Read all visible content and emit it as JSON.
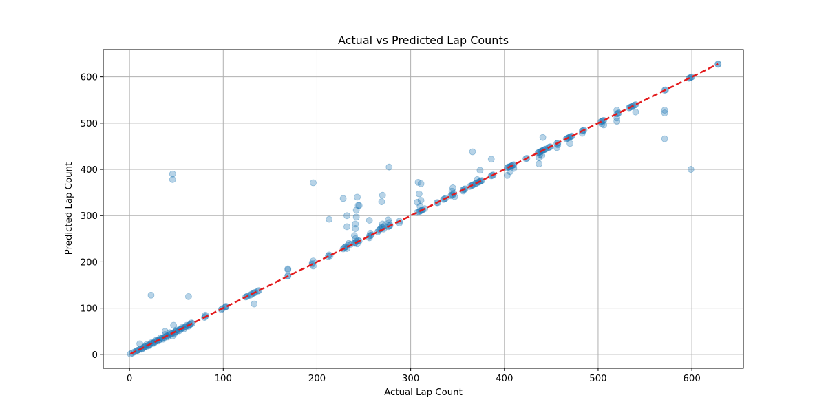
{
  "chart_data": {
    "type": "scatter",
    "title": "Actual vs Predicted Lap Counts",
    "xlabel": "Actual Lap Count",
    "ylabel": "Predicted Lap Count",
    "xlim": [
      -28,
      655
    ],
    "ylim": [
      -30,
      659
    ],
    "xticks": [
      0,
      100,
      200,
      300,
      400,
      500,
      600
    ],
    "yticks": [
      0,
      100,
      200,
      300,
      400,
      500,
      600
    ],
    "grid": true,
    "colors": {
      "points": "#1f77b4",
      "reference_line": "#e31a1c",
      "grid": "#b0b0b0"
    },
    "series": [
      {
        "points": [
          [
            1,
            1
          ],
          [
            3,
            3
          ],
          [
            5,
            5
          ],
          [
            7,
            7
          ],
          [
            9,
            9
          ],
          [
            10,
            10
          ],
          [
            12,
            12
          ],
          [
            14,
            13
          ],
          [
            15,
            15
          ],
          [
            17,
            17
          ],
          [
            19,
            18
          ],
          [
            20,
            20
          ],
          [
            22,
            22
          ],
          [
            24,
            24
          ],
          [
            25,
            25
          ],
          [
            27,
            27
          ],
          [
            29,
            29
          ],
          [
            30,
            31
          ],
          [
            32,
            32
          ],
          [
            34,
            34
          ],
          [
            35,
            35
          ],
          [
            37,
            37
          ],
          [
            39,
            39
          ],
          [
            40,
            40
          ],
          [
            42,
            42
          ],
          [
            44,
            44
          ],
          [
            45,
            45
          ],
          [
            47,
            47
          ],
          [
            49,
            49
          ],
          [
            50,
            50
          ],
          [
            52,
            52
          ],
          [
            54,
            54
          ],
          [
            55,
            55
          ],
          [
            57,
            57
          ],
          [
            59,
            59
          ],
          [
            60,
            60
          ],
          [
            62,
            62
          ],
          [
            64,
            64
          ],
          [
            65,
            65
          ],
          [
            67,
            67
          ],
          [
            8,
            8
          ],
          [
            11,
            23
          ],
          [
            13,
            11
          ],
          [
            16,
            16
          ],
          [
            18,
            21
          ],
          [
            21,
            19
          ],
          [
            23,
            25
          ],
          [
            26,
            24
          ],
          [
            28,
            30
          ],
          [
            31,
            29
          ],
          [
            33,
            36
          ],
          [
            36,
            33
          ],
          [
            38,
            43
          ],
          [
            38,
            50
          ],
          [
            41,
            38
          ],
          [
            43,
            47
          ],
          [
            46,
            40
          ],
          [
            47,
            63
          ],
          [
            48,
            45
          ],
          [
            50,
            53
          ],
          [
            53,
            51
          ],
          [
            56,
            58
          ],
          [
            58,
            55
          ],
          [
            61,
            63
          ],
          [
            63,
            61
          ],
          [
            66,
            68
          ],
          [
            23,
            128
          ],
          [
            63,
            125
          ],
          [
            46,
            390
          ],
          [
            46,
            378
          ],
          [
            80,
            80
          ],
          [
            81,
            82
          ],
          [
            81,
            85
          ],
          [
            98,
            97
          ],
          [
            99,
            99
          ],
          [
            102,
            102
          ],
          [
            103,
            103
          ],
          [
            103,
            104
          ],
          [
            124,
            124
          ],
          [
            125,
            125
          ],
          [
            126,
            126
          ],
          [
            129,
            128
          ],
          [
            130,
            130
          ],
          [
            132,
            132
          ],
          [
            133,
            133
          ],
          [
            134,
            134
          ],
          [
            137,
            137
          ],
          [
            138,
            138
          ],
          [
            133,
            109
          ],
          [
            169,
            169
          ],
          [
            169,
            170
          ],
          [
            169,
            183
          ],
          [
            169,
            185
          ],
          [
            195,
            195
          ],
          [
            195,
            198
          ],
          [
            196,
            191
          ],
          [
            196,
            202
          ],
          [
            196,
            371
          ],
          [
            212,
            212
          ],
          [
            213,
            215
          ],
          [
            214,
            213
          ],
          [
            213,
            292
          ],
          [
            228,
            228
          ],
          [
            229,
            230
          ],
          [
            230,
            232
          ],
          [
            231,
            233
          ],
          [
            232,
            229
          ],
          [
            233,
            236
          ],
          [
            234,
            240
          ],
          [
            236,
            238
          ],
          [
            228,
            337
          ],
          [
            232,
            276
          ],
          [
            232,
            300
          ],
          [
            240,
            240
          ],
          [
            241,
            242
          ],
          [
            242,
            244
          ],
          [
            243,
            239
          ],
          [
            244,
            246
          ],
          [
            245,
            245
          ],
          [
            240,
            257
          ],
          [
            241,
            250
          ],
          [
            241,
            272
          ],
          [
            241,
            282
          ],
          [
            242,
            297
          ],
          [
            242,
            312
          ],
          [
            243,
            340
          ],
          [
            244,
            322
          ],
          [
            245,
            322
          ],
          [
            256,
            256
          ],
          [
            257,
            257
          ],
          [
            258,
            258
          ],
          [
            256,
            252
          ],
          [
            257,
            262
          ],
          [
            256,
            290
          ],
          [
            265,
            265
          ],
          [
            266,
            268
          ],
          [
            267,
            270
          ],
          [
            268,
            272
          ],
          [
            269,
            275
          ],
          [
            270,
            274
          ],
          [
            271,
            271
          ],
          [
            272,
            278
          ],
          [
            269,
            330
          ],
          [
            270,
            344
          ],
          [
            270,
            282
          ],
          [
            276,
            276
          ],
          [
            277,
            278
          ],
          [
            278,
            279
          ],
          [
            277,
            285
          ],
          [
            276,
            291
          ],
          [
            277,
            405
          ],
          [
            288,
            288
          ],
          [
            288,
            284
          ],
          [
            307,
            307
          ],
          [
            309,
            308
          ],
          [
            310,
            310
          ],
          [
            311,
            311
          ],
          [
            312,
            312
          ],
          [
            313,
            313
          ],
          [
            315,
            315
          ],
          [
            307,
            329
          ],
          [
            308,
            372
          ],
          [
            309,
            347
          ],
          [
            311,
            333
          ],
          [
            311,
            369
          ],
          [
            310,
            320
          ],
          [
            328,
            328
          ],
          [
            329,
            328
          ],
          [
            335,
            335
          ],
          [
            336,
            336
          ],
          [
            337,
            337
          ],
          [
            343,
            343
          ],
          [
            344,
            345
          ],
          [
            345,
            345
          ],
          [
            346,
            348
          ],
          [
            347,
            341
          ],
          [
            345,
            360
          ],
          [
            344,
            353
          ],
          [
            356,
            356
          ],
          [
            357,
            357
          ],
          [
            358,
            358
          ],
          [
            356,
            353
          ],
          [
            363,
            363
          ],
          [
            365,
            365
          ],
          [
            366,
            366
          ],
          [
            367,
            367
          ],
          [
            369,
            369
          ],
          [
            370,
            370
          ],
          [
            372,
            372
          ],
          [
            373,
            373
          ],
          [
            374,
            374
          ],
          [
            375,
            375
          ],
          [
            376,
            376
          ],
          [
            366,
            438
          ],
          [
            371,
            378
          ],
          [
            374,
            398
          ],
          [
            386,
            386
          ],
          [
            387,
            387
          ],
          [
            388,
            388
          ],
          [
            386,
            422
          ],
          [
            403,
            403
          ],
          [
            404,
            405
          ],
          [
            405,
            405
          ],
          [
            406,
            406
          ],
          [
            407,
            407
          ],
          [
            408,
            408
          ],
          [
            409,
            409
          ],
          [
            410,
            410
          ],
          [
            403,
            387
          ],
          [
            406,
            395
          ],
          [
            410,
            402
          ],
          [
            423,
            423
          ],
          [
            424,
            424
          ],
          [
            436,
            436
          ],
          [
            437,
            437
          ],
          [
            438,
            438
          ],
          [
            439,
            439
          ],
          [
            440,
            440
          ],
          [
            441,
            441
          ],
          [
            442,
            442
          ],
          [
            443,
            443
          ],
          [
            444,
            444
          ],
          [
            437,
            412
          ],
          [
            437,
            425
          ],
          [
            438,
            432
          ],
          [
            440,
            430
          ],
          [
            441,
            469
          ],
          [
            447,
            447
          ],
          [
            448,
            448
          ],
          [
            449,
            449
          ],
          [
            456,
            456
          ],
          [
            457,
            457
          ],
          [
            456,
            447
          ],
          [
            457,
            453
          ],
          [
            466,
            466
          ],
          [
            467,
            467
          ],
          [
            468,
            468
          ],
          [
            469,
            469
          ],
          [
            470,
            470
          ],
          [
            471,
            471
          ],
          [
            472,
            472
          ],
          [
            470,
            456
          ],
          [
            483,
            483
          ],
          [
            484,
            484
          ],
          [
            485,
            485
          ],
          [
            483,
            478
          ],
          [
            503,
            503
          ],
          [
            504,
            504
          ],
          [
            505,
            505
          ],
          [
            506,
            506
          ],
          [
            504,
            498
          ],
          [
            506,
            496
          ],
          [
            520,
            520
          ],
          [
            521,
            521
          ],
          [
            522,
            522
          ],
          [
            520,
            511
          ],
          [
            520,
            504
          ],
          [
            520,
            528
          ],
          [
            533,
            533
          ],
          [
            534,
            534
          ],
          [
            535,
            535
          ],
          [
            536,
            536
          ],
          [
            537,
            537
          ],
          [
            539,
            539
          ],
          [
            540,
            540
          ],
          [
            540,
            524
          ],
          [
            571,
            571
          ],
          [
            572,
            572
          ],
          [
            571,
            528
          ],
          [
            571,
            522
          ],
          [
            571,
            466
          ],
          [
            597,
            597
          ],
          [
            598,
            598
          ],
          [
            599,
            599
          ],
          [
            600,
            600
          ],
          [
            599,
            400
          ],
          [
            628,
            628
          ],
          [
            628,
            627
          ]
        ]
      }
    ],
    "reference_line": [
      [
        1,
        1
      ],
      [
        628,
        628
      ]
    ]
  }
}
